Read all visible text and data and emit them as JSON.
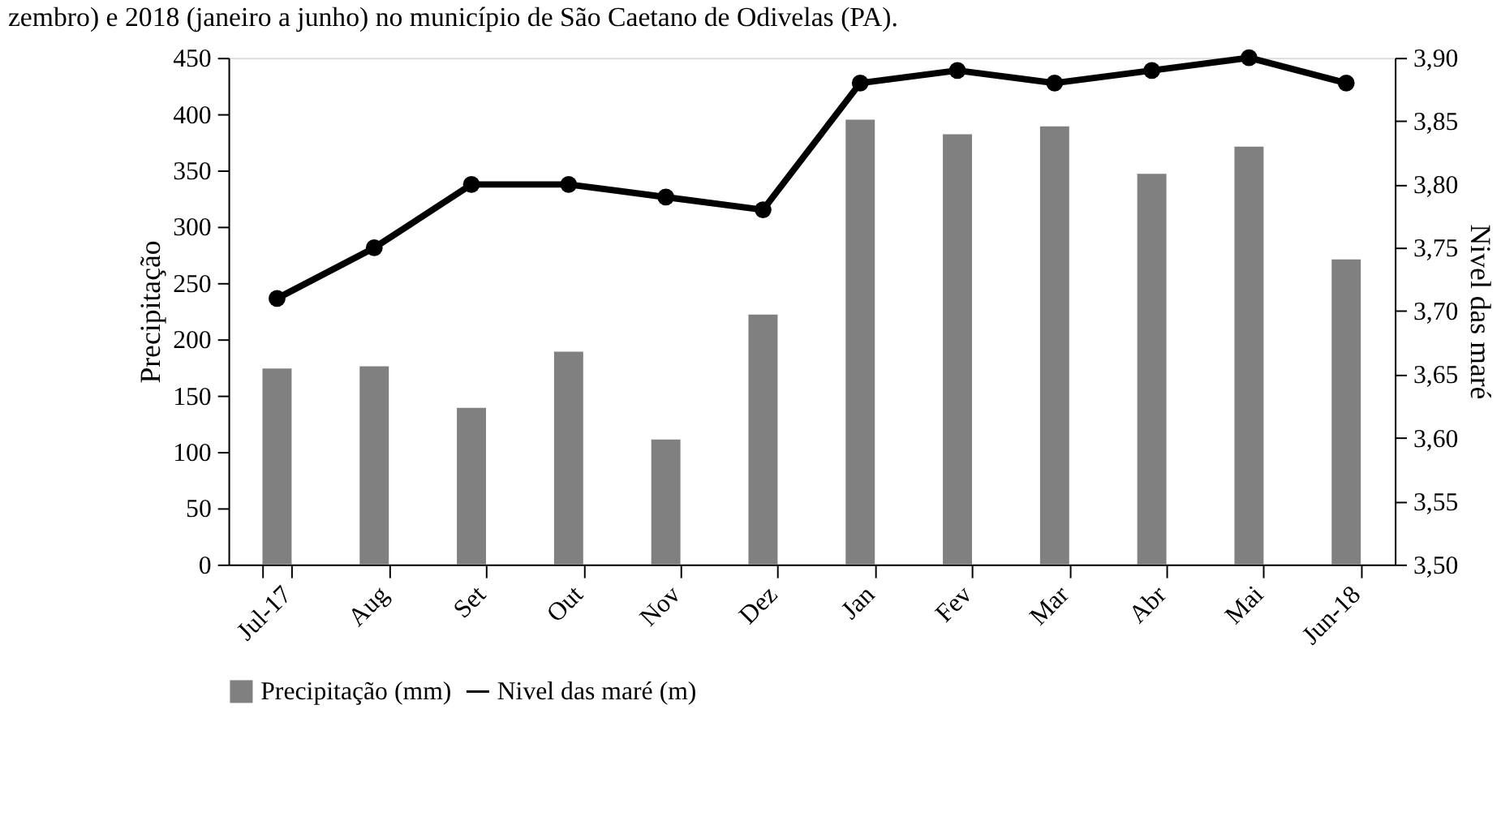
{
  "chart_data": {
    "type": "bar",
    "annotations": [
      "zembro) e 2018 (janeiro a junho) no município de São Caetano de Odivelas (PA)."
    ],
    "ylabel": "Precipitação",
    "y2label": "Nivel das maré",
    "categories": [
      "Jul-17",
      "Aug",
      "Set",
      "Out",
      "Nov",
      "Dez",
      "Jan",
      "Fev",
      "Mar",
      "Abr",
      "Mai",
      "Jun-18"
    ],
    "series": [
      {
        "name": "Precipitação (mm)",
        "color": "#808080",
        "values": [
          174,
          176,
          139,
          189,
          111,
          222,
          395,
          382,
          389,
          347,
          371,
          271
        ]
      },
      {
        "name": "Nivel das maré (m)",
        "type": "line",
        "axis": "y2",
        "color": "#000000",
        "marker": "circle",
        "values": [
          3.71,
          3.75,
          3.8,
          3.8,
          3.79,
          3.78,
          3.88,
          3.89,
          3.88,
          3.89,
          3.9,
          3.88
        ]
      }
    ],
    "ylim": [
      0,
      450
    ],
    "yticks": [
      0,
      50,
      100,
      150,
      200,
      250,
      300,
      350,
      400,
      450
    ],
    "y2lim": [
      3.5,
      3.9
    ],
    "y2ticks": [
      {
        "value": 3.5,
        "label": "3,50"
      },
      {
        "value": 3.55,
        "label": "3,55"
      },
      {
        "value": 3.6,
        "label": "3,60"
      },
      {
        "value": 3.65,
        "label": "3,65"
      },
      {
        "value": 3.7,
        "label": "3,70"
      },
      {
        "value": 3.75,
        "label": "3,75"
      },
      {
        "value": 3.8,
        "label": "3,80"
      },
      {
        "value": 3.85,
        "label": "3,85"
      },
      {
        "value": 3.9,
        "label": "3,90"
      }
    ],
    "grid": false,
    "legend": "bottom"
  }
}
